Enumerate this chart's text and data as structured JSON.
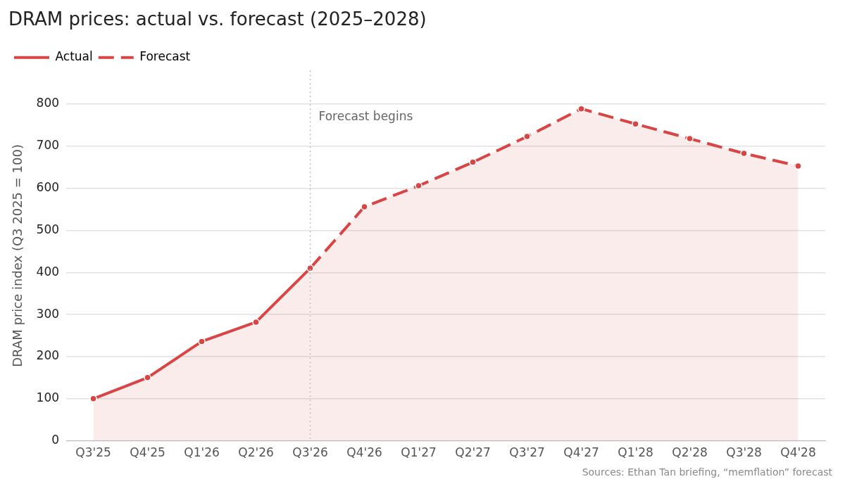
{
  "chart_data": {
    "type": "area",
    "title": "DRAM prices: actual vs. forecast (2025–2028)",
    "ylabel": "DRAM price index (Q3 2025 = 100)",
    "categories": [
      "Q3'25",
      "Q4'25",
      "Q1'26",
      "Q2'26",
      "Q3'26",
      "Q4'26",
      "Q1'27",
      "Q2'27",
      "Q3'27",
      "Q4'27",
      "Q1'28",
      "Q2'28",
      "Q3'28",
      "Q4'28"
    ],
    "series": [
      {
        "name": "Actual",
        "color": "#d94444",
        "line_style": "solid",
        "values": [
          100,
          150,
          236,
          282,
          410,
          null,
          null,
          null,
          null,
          null,
          null,
          null,
          null,
          null
        ]
      },
      {
        "name": "Forecast",
        "color": "#d94444",
        "line_style": "dashed",
        "values": [
          null,
          null,
          null,
          null,
          410,
          556,
          606,
          662,
          723,
          789,
          753,
          718,
          683,
          653
        ]
      }
    ],
    "ylim": [
      0,
      880
    ],
    "yticks": [
      0,
      100,
      200,
      300,
      400,
      500,
      600,
      700,
      800
    ],
    "grid": "y",
    "legend": "top left",
    "marker": "circle",
    "ref_lines": [
      {
        "axis": "x",
        "value": "Q3'26",
        "label": "Forecast begins",
        "color": "#bbbbbb",
        "line_style": "dotted"
      }
    ],
    "annotations": [
      "Sources: Ethan Tan briefing, “memflation” forecast"
    ]
  }
}
